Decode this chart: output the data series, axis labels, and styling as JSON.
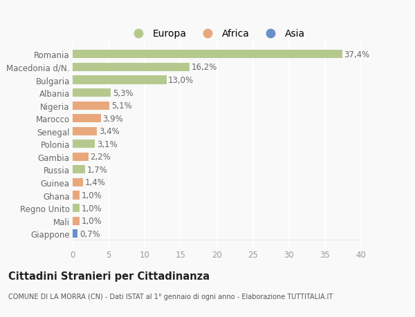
{
  "categories": [
    "Giappone",
    "Mali",
    "Regno Unito",
    "Ghana",
    "Guinea",
    "Russia",
    "Gambia",
    "Polonia",
    "Senegal",
    "Marocco",
    "Nigeria",
    "Albania",
    "Bulgaria",
    "Macedonia d/N.",
    "Romania"
  ],
  "values": [
    0.7,
    1.0,
    1.0,
    1.0,
    1.4,
    1.7,
    2.2,
    3.1,
    3.4,
    3.9,
    5.1,
    5.3,
    13.0,
    16.2,
    37.4
  ],
  "labels": [
    "0,7%",
    "1,0%",
    "1,0%",
    "1,0%",
    "1,4%",
    "1,7%",
    "2,2%",
    "3,1%",
    "3,4%",
    "3,9%",
    "5,1%",
    "5,3%",
    "13,0%",
    "16,2%",
    "37,4%"
  ],
  "continents": [
    "Asia",
    "Africa",
    "Europa",
    "Africa",
    "Africa",
    "Europa",
    "Africa",
    "Europa",
    "Africa",
    "Africa",
    "Africa",
    "Europa",
    "Europa",
    "Europa",
    "Europa"
  ],
  "colors": {
    "Europa": "#b5c98e",
    "Africa": "#e8a87c",
    "Asia": "#6b8fc9"
  },
  "legend_labels": [
    "Europa",
    "Africa",
    "Asia"
  ],
  "legend_colors": [
    "#b5c98e",
    "#e8a87c",
    "#6b8fc9"
  ],
  "title": "Cittadini Stranieri per Cittadinanza",
  "subtitle": "COMUNE DI LA MORRA (CN) - Dati ISTAT al 1° gennaio di ogni anno - Elaborazione TUTTITALIA.IT",
  "xlim": [
    0,
    40
  ],
  "xticks": [
    0,
    5,
    10,
    15,
    20,
    25,
    30,
    35,
    40
  ],
  "background_color": "#f9f9f9",
  "bar_height": 0.65,
  "grid_color": "#ffffff",
  "label_fontsize": 8.5,
  "tick_fontsize": 8.5,
  "ylabel_fontsize": 8.5
}
